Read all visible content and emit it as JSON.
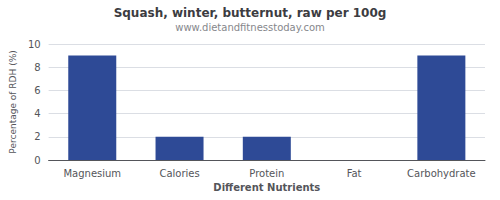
{
  "chart_data": {
    "type": "bar",
    "title": "Squash, winter, butternut, raw per 100g",
    "subtitle": "www.dietandfitnesstoday.com",
    "xlabel": "Different Nutrients",
    "ylabel": "Percentage of RDH (%)",
    "categories": [
      "Magnesium",
      "Calories",
      "Protein",
      "Fat",
      "Carbohydrate"
    ],
    "values": [
      9,
      2,
      2,
      0,
      9
    ],
    "color": "#2e4a96",
    "ylim": [
      0,
      10
    ],
    "yticks": [
      0,
      2,
      4,
      6,
      8,
      10
    ],
    "grid": true
  }
}
